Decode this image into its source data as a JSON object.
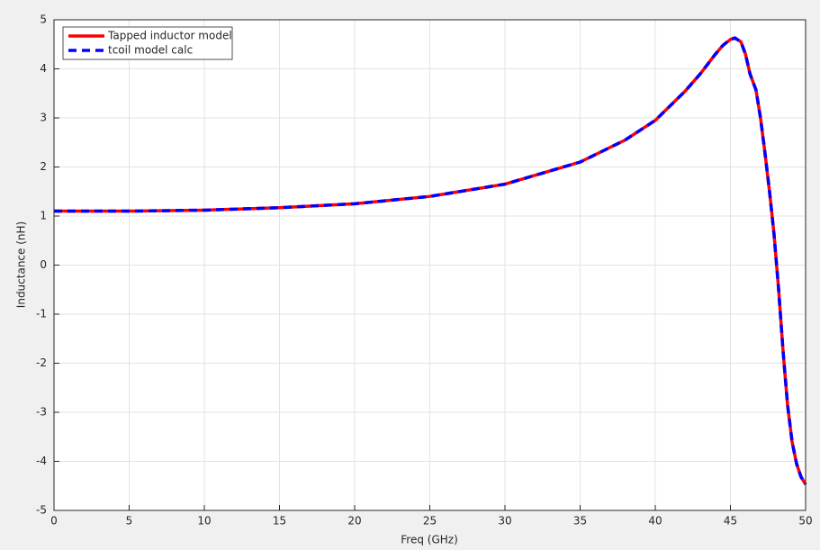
{
  "chart_data": {
    "type": "line",
    "xlabel": "Freq (GHz)",
    "ylabel": "Inductance (nH)",
    "x": [
      0,
      5,
      10,
      15,
      20,
      25,
      30,
      35,
      38,
      40,
      42,
      43,
      44,
      44.5,
      45,
      45.3,
      45.7,
      46,
      46.3,
      46.7,
      47,
      47.3,
      47.6,
      47.9,
      48.2,
      48.5,
      48.8,
      49.1,
      49.4,
      49.7,
      50
    ],
    "series": [
      {
        "name": "Tapped inductor model",
        "color": "#ff0000",
        "dashed": false,
        "values": [
          1.1,
          1.1,
          1.12,
          1.17,
          1.25,
          1.4,
          1.65,
          2.1,
          2.55,
          2.95,
          3.55,
          3.9,
          4.3,
          4.48,
          4.6,
          4.63,
          4.55,
          4.3,
          3.9,
          3.57,
          3.0,
          2.28,
          1.5,
          0.63,
          -0.47,
          -1.75,
          -2.85,
          -3.6,
          -4.05,
          -4.32,
          -4.47
        ]
      },
      {
        "name": "tcoil model calc",
        "color": "#0000ff",
        "dashed": true,
        "values": [
          1.1,
          1.1,
          1.12,
          1.17,
          1.25,
          1.4,
          1.65,
          2.1,
          2.55,
          2.95,
          3.55,
          3.9,
          4.3,
          4.48,
          4.6,
          4.63,
          4.55,
          4.3,
          3.9,
          3.57,
          3.0,
          2.28,
          1.5,
          0.63,
          -0.47,
          -1.75,
          -2.85,
          -3.6,
          -4.05,
          -4.32,
          -4.47
        ]
      }
    ],
    "xlim": [
      0,
      50
    ],
    "ylim": [
      -5,
      5
    ],
    "xticks": [
      0,
      5,
      10,
      15,
      20,
      25,
      30,
      35,
      40,
      45,
      50
    ],
    "yticks": [
      -5,
      -4,
      -3,
      -2,
      -1,
      0,
      1,
      2,
      3,
      4,
      5
    ],
    "grid": true,
    "legend": "top-left"
  }
}
